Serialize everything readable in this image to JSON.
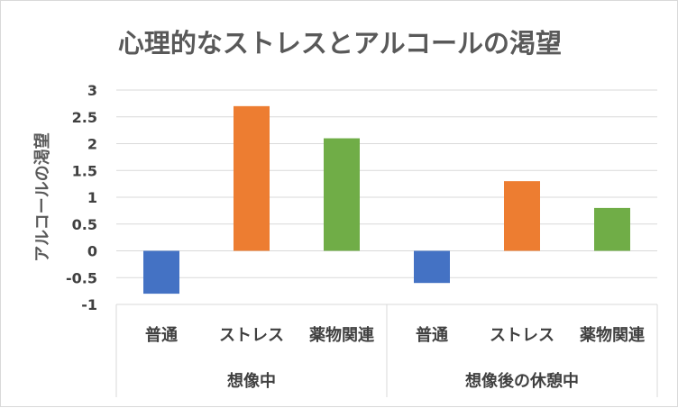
{
  "chart_data": {
    "type": "bar",
    "title": "心理的なストレスとアルコールの渇望",
    "ylabel": "アルコールの渇望",
    "xlabel": "",
    "ylim": [
      -1,
      3
    ],
    "yticks": [
      3,
      2.5,
      2,
      1.5,
      1,
      0.5,
      0,
      -0.5,
      -1
    ],
    "grid": true,
    "groups": [
      {
        "label": "想像中",
        "categories": [
          "普通",
          "ストレス",
          "薬物関連"
        ],
        "values": [
          -0.8,
          2.7,
          2.1
        ]
      },
      {
        "label": "想像後の休憩中",
        "categories": [
          "普通",
          "ストレス",
          "薬物関連"
        ],
        "values": [
          -0.6,
          1.3,
          0.8
        ]
      }
    ],
    "colors": [
      "#4472c4",
      "#ed7d31",
      "#70ad47"
    ]
  }
}
